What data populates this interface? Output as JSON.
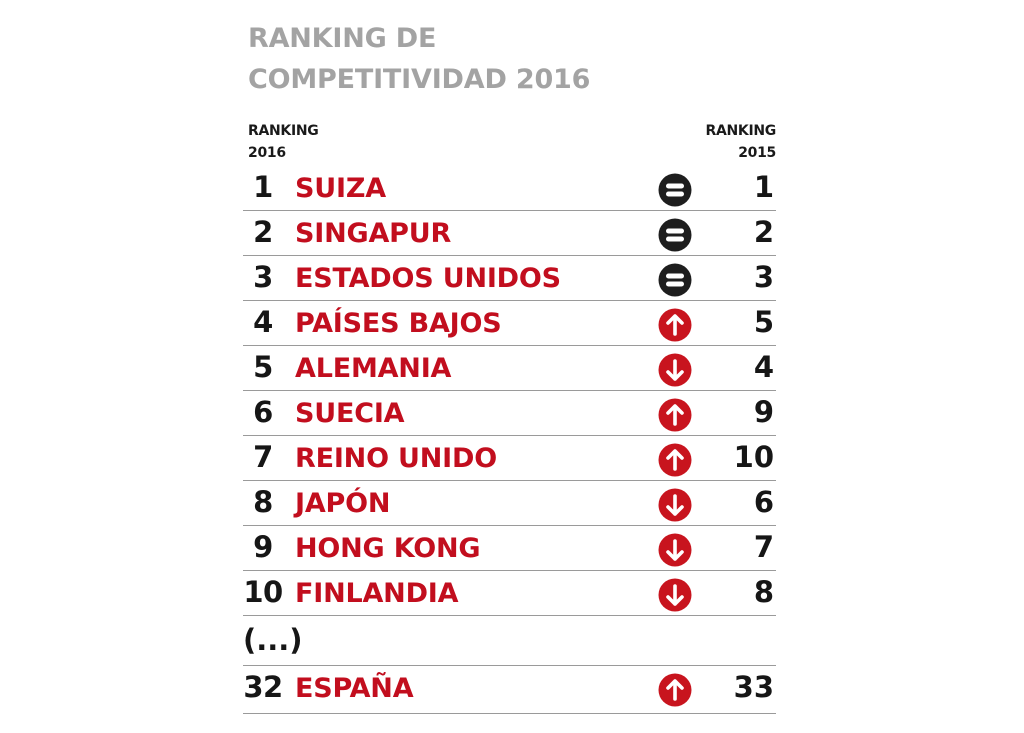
{
  "chart_data": {
    "type": "table",
    "title_line1": "RANKING DE",
    "title_line2": "COMPETITIVIDAD 2016",
    "headers": {
      "left_line1": "RANKING",
      "left_line2": "2016",
      "right_line1": "RANKING",
      "right_line2": "2015"
    },
    "rows": [
      {
        "rank": "1",
        "country": "SUIZA",
        "change": "same",
        "prev": "1"
      },
      {
        "rank": "2",
        "country": "SINGAPUR",
        "change": "same",
        "prev": "2"
      },
      {
        "rank": "3",
        "country": "ESTADOS UNIDOS",
        "change": "same",
        "prev": "3"
      },
      {
        "rank": "4",
        "country": "PAÍSES BAJOS",
        "change": "up",
        "prev": "5"
      },
      {
        "rank": "5",
        "country": "ALEMANIA",
        "change": "down",
        "prev": "4"
      },
      {
        "rank": "6",
        "country": "SUECIA",
        "change": "up",
        "prev": "9"
      },
      {
        "rank": "7",
        "country": "REINO UNIDO",
        "change": "up",
        "prev": "10"
      },
      {
        "rank": "8",
        "country": "JAPÓN",
        "change": "down",
        "prev": "6"
      },
      {
        "rank": "9",
        "country": "HONG KONG",
        "change": "down",
        "prev": "7"
      },
      {
        "rank": "10",
        "country": "FINLANDIA",
        "change": "down",
        "prev": "8"
      }
    ],
    "ellipsis": "(...)",
    "extra_rows": [
      {
        "rank": "32",
        "country": "ESPAÑA",
        "change": "up",
        "prev": "33"
      }
    ],
    "colors": {
      "title": "#a3a3a3",
      "country": "#c20e1e",
      "same_icon": "#1e1e1e",
      "change_icon": "#c8141e"
    },
    "icons": {
      "same": "equal-sign-icon",
      "up": "arrow-up-icon",
      "down": "arrow-down-icon"
    }
  }
}
